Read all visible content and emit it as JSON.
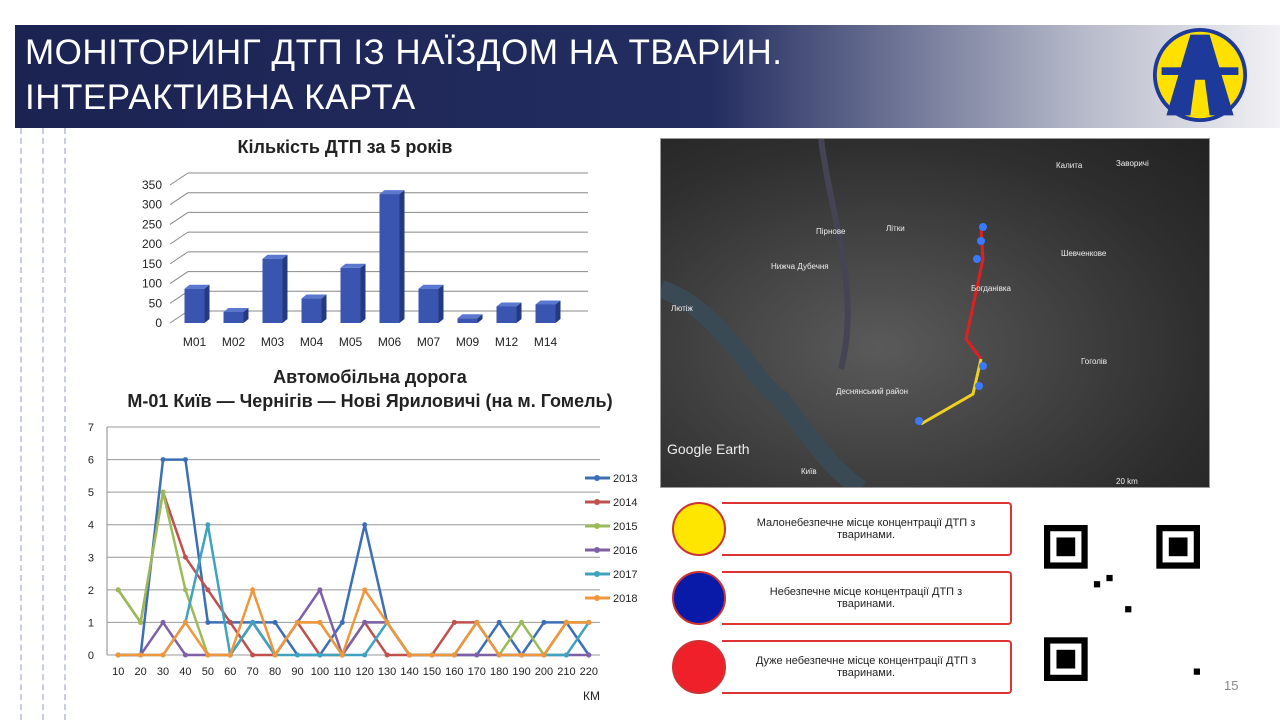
{
  "header": {
    "title_line1": "МОНІТОРИНГ ДТП ІЗ НАЇЗДОМ НА ТВАРИН.",
    "title_line2": "ІНТЕРАКТИВНА КАРТА"
  },
  "chart_data": [
    {
      "type": "bar",
      "title": "Кількість ДТП за 5 років",
      "categories": [
        "M01",
        "M02",
        "M03",
        "M04",
        "M05",
        "M06",
        "M07",
        "M09",
        "M12",
        "M14"
      ],
      "values": [
        87,
        28,
        163,
        62,
        140,
        327,
        87,
        12,
        42,
        47
      ],
      "ylim": [
        0,
        350
      ],
      "yticks": [
        "0",
        "50",
        "100",
        "150",
        "200",
        "250",
        "300",
        "350"
      ],
      "grid": true,
      "color": "#3a55b0"
    },
    {
      "type": "line",
      "title_line1": "Автомобільна дорога",
      "title_line2": "М-01 Київ — Чернігів — Нові Яриловичі (на м. Гомель)",
      "xlabel": "КМ",
      "x": [
        10,
        20,
        30,
        40,
        50,
        60,
        70,
        80,
        90,
        100,
        110,
        120,
        130,
        140,
        150,
        160,
        170,
        180,
        190,
        200,
        210,
        220
      ],
      "ylim": [
        0,
        7
      ],
      "yticks": [
        "0",
        "1",
        "2",
        "3",
        "4",
        "5",
        "6",
        "7"
      ],
      "grid": true,
      "legend": "right",
      "series": [
        {
          "name": "2013",
          "color": "#3c6fb5",
          "values": [
            0,
            0,
            6,
            6,
            1,
            1,
            1,
            1,
            0,
            0,
            1,
            4,
            1,
            0,
            0,
            0,
            0,
            1,
            0,
            1,
            1,
            0
          ]
        },
        {
          "name": "2014",
          "color": "#c0504d",
          "values": [
            2,
            1,
            5,
            3,
            2,
            1,
            0,
            0,
            1,
            0,
            0,
            1,
            0,
            0,
            0,
            1,
            1,
            0,
            0,
            0,
            1,
            1
          ]
        },
        {
          "name": "2015",
          "color": "#9bbb59",
          "values": [
            2,
            1,
            5,
            2,
            0,
            0,
            1,
            0,
            1,
            1,
            0,
            1,
            1,
            0,
            0,
            0,
            1,
            0,
            1,
            0,
            1,
            1
          ]
        },
        {
          "name": "2016",
          "color": "#7f5fa6",
          "values": [
            0,
            0,
            1,
            0,
            0,
            0,
            1,
            0,
            1,
            2,
            0,
            1,
            1,
            0,
            0,
            0,
            0,
            0,
            0,
            0,
            0,
            0
          ]
        },
        {
          "name": "2017",
          "color": "#3fa3c0",
          "values": [
            0,
            0,
            0,
            1,
            4,
            0,
            1,
            0,
            0,
            0,
            0,
            0,
            1,
            0,
            0,
            0,
            1,
            0,
            0,
            0,
            0,
            1
          ]
        },
        {
          "name": "2018",
          "color": "#f0963c",
          "values": [
            0,
            0,
            0,
            1,
            0,
            0,
            2,
            0,
            1,
            1,
            0,
            2,
            1,
            0,
            0,
            0,
            1,
            0,
            0,
            0,
            1,
            1
          ]
        }
      ]
    }
  ],
  "map": {
    "labels": [
      "Калита",
      "Заворичі",
      "Пірнове",
      "Літки",
      "Шевченкове",
      "Нижча Дубечня",
      "Богданівка",
      "Лютіж",
      "Гоголів",
      "Деснянський район",
      "Київ"
    ],
    "brand": "Google Earth",
    "scale": "20 km"
  },
  "legend": [
    {
      "color": "#ffe600",
      "text": "Малонебезпечне місце концентрації ДТП з тваринами."
    },
    {
      "color": "#0a1aa8",
      "text": "Небезпечне місце концентрації ДТП з тваринами."
    },
    {
      "color": "#f0202a",
      "text": "Дуже небезпечне місце концентрації ДТП з тваринами."
    }
  ],
  "page_number": "15"
}
